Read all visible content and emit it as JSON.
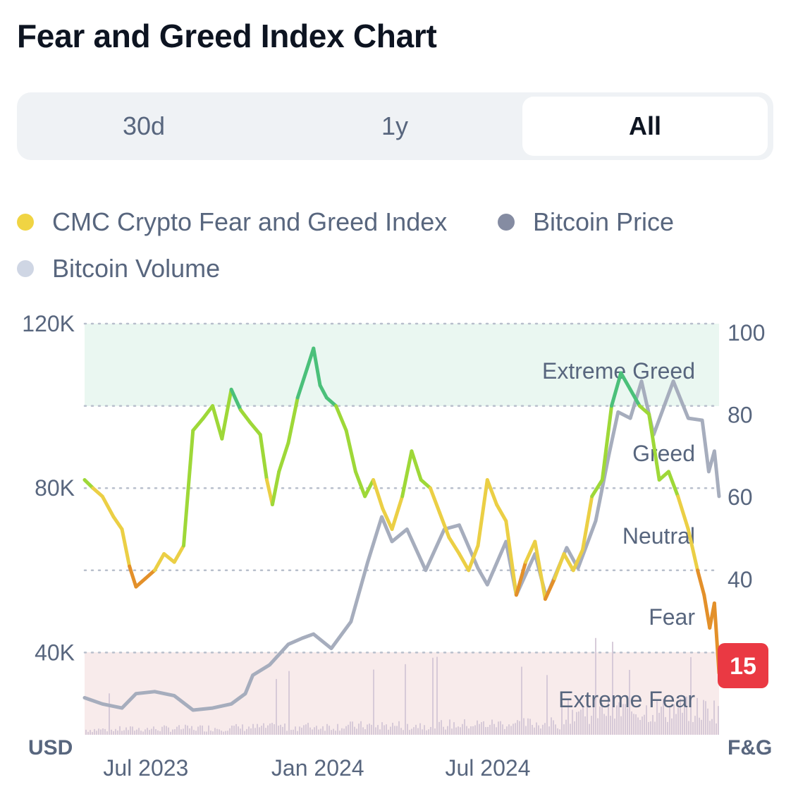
{
  "title": "Fear and Greed Index Chart",
  "tabs": [
    {
      "label": "30d",
      "active": false
    },
    {
      "label": "1y",
      "active": false
    },
    {
      "label": "All",
      "active": true
    }
  ],
  "legend": [
    {
      "label": "CMC Crypto Fear and Greed Index",
      "color": "#f0d443"
    },
    {
      "label": "Bitcoin Price",
      "color": "#858ca2"
    },
    {
      "label": "Bitcoin Volume",
      "color": "#cfd6e4"
    }
  ],
  "current_value_badge": "15",
  "colors": {
    "extreme_greed": "#4bc07a",
    "greed": "#9ed838",
    "neutral": "#ebcf45",
    "fear": "#e3902a",
    "extreme_fear": "#e0403f",
    "price_line": "#a6adbd",
    "volume": "#d3c7d6",
    "badge": "#ea3943"
  },
  "chart_data": {
    "type": "line",
    "x_range": [
      "2023-05-01",
      "2025-03-10"
    ],
    "x_ticks": [
      {
        "label": "Jul 2023",
        "date": "2023-07-01"
      },
      {
        "label": "Jan 2024",
        "date": "2024-01-01"
      },
      {
        "label": "Jul 2024",
        "date": "2024-07-01"
      }
    ],
    "y_left": {
      "label": "USD",
      "range": [
        20000,
        120000
      ],
      "ticks": [
        {
          "v": 40000,
          "label": "40K"
        },
        {
          "v": 80000,
          "label": "80K"
        },
        {
          "v": 120000,
          "label": "120K"
        }
      ]
    },
    "y_right": {
      "label": "F&G",
      "range": [
        0,
        100
      ],
      "ticks": [
        {
          "v": 40,
          "label": "40"
        },
        {
          "v": 60,
          "label": "60"
        },
        {
          "v": 80,
          "label": "80"
        },
        {
          "v": 100,
          "label": "100"
        }
      ]
    },
    "zones": [
      {
        "name": "Extreme Greed",
        "from": 80,
        "to": 100
      },
      {
        "name": "Greed",
        "from": 60,
        "to": 80
      },
      {
        "name": "Neutral",
        "from": 40,
        "to": 60
      },
      {
        "name": "Fear",
        "from": 20,
        "to": 40
      },
      {
        "name": "Extreme Fear",
        "from": 0,
        "to": 20
      }
    ],
    "series": [
      {
        "name": "CMC Crypto Fear and Greed Index",
        "axis": "right",
        "points": [
          [
            "2023-05-01",
            62
          ],
          [
            "2023-05-10",
            60
          ],
          [
            "2023-05-20",
            58
          ],
          [
            "2023-06-01",
            53
          ],
          [
            "2023-06-10",
            50
          ],
          [
            "2023-06-18",
            41
          ],
          [
            "2023-06-25",
            36
          ],
          [
            "2023-07-05",
            38
          ],
          [
            "2023-07-15",
            40
          ],
          [
            "2023-07-25",
            44
          ],
          [
            "2023-08-05",
            42
          ],
          [
            "2023-08-15",
            46
          ],
          [
            "2023-08-25",
            74
          ],
          [
            "2023-09-05",
            77
          ],
          [
            "2023-09-15",
            80
          ],
          [
            "2023-09-25",
            72
          ],
          [
            "2023-10-05",
            84
          ],
          [
            "2023-10-15",
            79
          ],
          [
            "2023-10-25",
            76
          ],
          [
            "2023-11-05",
            73
          ],
          [
            "2023-11-12",
            62
          ],
          [
            "2023-11-18",
            56
          ],
          [
            "2023-11-25",
            64
          ],
          [
            "2023-12-05",
            71
          ],
          [
            "2023-12-15",
            82
          ],
          [
            "2023-12-25",
            89
          ],
          [
            "2024-01-01",
            94
          ],
          [
            "2024-01-08",
            85
          ],
          [
            "2024-01-15",
            82
          ],
          [
            "2024-01-25",
            80
          ],
          [
            "2024-02-05",
            74
          ],
          [
            "2024-02-15",
            64
          ],
          [
            "2024-02-25",
            58
          ],
          [
            "2024-03-05",
            62
          ],
          [
            "2024-03-15",
            55
          ],
          [
            "2024-03-25",
            50
          ],
          [
            "2024-04-05",
            58
          ],
          [
            "2024-04-15",
            69
          ],
          [
            "2024-04-25",
            62
          ],
          [
            "2024-05-05",
            60
          ],
          [
            "2024-05-15",
            54
          ],
          [
            "2024-05-25",
            48
          ],
          [
            "2024-06-05",
            44
          ],
          [
            "2024-06-15",
            40
          ],
          [
            "2024-06-25",
            46
          ],
          [
            "2024-07-05",
            62
          ],
          [
            "2024-07-15",
            56
          ],
          [
            "2024-07-25",
            52
          ],
          [
            "2024-08-05",
            34
          ],
          [
            "2024-08-15",
            42
          ],
          [
            "2024-08-25",
            47
          ],
          [
            "2024-09-05",
            33
          ],
          [
            "2024-09-15",
            38
          ],
          [
            "2024-09-25",
            44
          ],
          [
            "2024-10-05",
            40
          ],
          [
            "2024-10-15",
            45
          ],
          [
            "2024-10-25",
            58
          ],
          [
            "2024-11-05",
            62
          ],
          [
            "2024-11-15",
            80
          ],
          [
            "2024-11-25",
            88
          ],
          [
            "2024-12-05",
            84
          ],
          [
            "2024-12-15",
            80
          ],
          [
            "2024-12-25",
            78
          ],
          [
            "2025-01-05",
            62
          ],
          [
            "2025-01-15",
            64
          ],
          [
            "2025-01-25",
            58
          ],
          [
            "2025-02-05",
            50
          ],
          [
            "2025-02-15",
            40
          ],
          [
            "2025-02-22",
            34
          ],
          [
            "2025-02-28",
            26
          ],
          [
            "2025-03-05",
            32
          ],
          [
            "2025-03-10",
            15
          ]
        ]
      },
      {
        "name": "Bitcoin Price",
        "axis": "left",
        "points": [
          [
            "2023-05-01",
            29000
          ],
          [
            "2023-05-20",
            27500
          ],
          [
            "2023-06-10",
            26500
          ],
          [
            "2023-06-25",
            30000
          ],
          [
            "2023-07-15",
            30500
          ],
          [
            "2023-08-05",
            29500
          ],
          [
            "2023-08-25",
            26000
          ],
          [
            "2023-09-15",
            26500
          ],
          [
            "2023-10-05",
            27500
          ],
          [
            "2023-10-20",
            30000
          ],
          [
            "2023-10-28",
            34500
          ],
          [
            "2023-11-15",
            37000
          ],
          [
            "2023-12-05",
            42000
          ],
          [
            "2023-12-20",
            43500
          ],
          [
            "2024-01-01",
            44500
          ],
          [
            "2024-01-20",
            41000
          ],
          [
            "2024-02-10",
            47500
          ],
          [
            "2024-02-28",
            62000
          ],
          [
            "2024-03-14",
            73000
          ],
          [
            "2024-03-25",
            67000
          ],
          [
            "2024-04-10",
            70000
          ],
          [
            "2024-04-30",
            60000
          ],
          [
            "2024-05-20",
            70000
          ],
          [
            "2024-06-05",
            71000
          ],
          [
            "2024-06-25",
            60500
          ],
          [
            "2024-07-05",
            56500
          ],
          [
            "2024-07-25",
            67000
          ],
          [
            "2024-08-05",
            54000
          ],
          [
            "2024-08-25",
            64000
          ],
          [
            "2024-09-06",
            53500
          ],
          [
            "2024-09-28",
            65500
          ],
          [
            "2024-10-10",
            60500
          ],
          [
            "2024-10-29",
            72000
          ],
          [
            "2024-11-12",
            88000
          ],
          [
            "2024-11-22",
            98500
          ],
          [
            "2024-12-05",
            97000
          ],
          [
            "2024-12-17",
            106000
          ],
          [
            "2024-12-30",
            93000
          ],
          [
            "2025-01-20",
            106000
          ],
          [
            "2025-02-05",
            97000
          ],
          [
            "2025-02-20",
            96500
          ],
          [
            "2025-02-27",
            84000
          ],
          [
            "2025-03-05",
            89000
          ],
          [
            "2025-03-10",
            78000
          ]
        ]
      },
      {
        "name": "Bitcoin Volume",
        "axis": "left",
        "note": "bars along the bottom"
      }
    ]
  }
}
